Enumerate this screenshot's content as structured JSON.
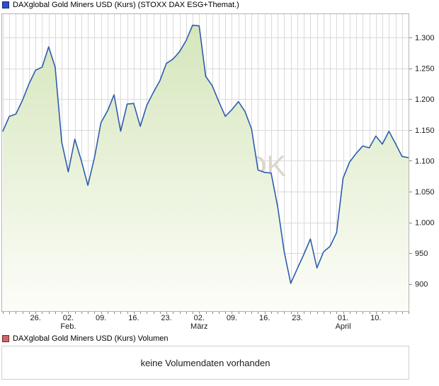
{
  "price_section": {
    "legend_label": "DAXglobal Gold Miners USD (Kurs) (STOXX DAX ESG+Themat.)",
    "marker_color": "#2b50c8",
    "marker_border": "#17267f"
  },
  "volume_section": {
    "legend_label": "DAXglobal Gold Miners USD (Kurs) Volumen",
    "marker_color": "#c96a6a",
    "marker_border": "#7c2222",
    "empty_message": "keine Volumendaten vorhanden"
  },
  "watermark_text": "DK",
  "chart_data": {
    "type": "area",
    "title": "DAXglobal Gold Miners USD (Kurs)",
    "x_unit": "trading days",
    "x": [
      "19.01",
      "20.01",
      "21.01",
      "22.01",
      "23.01",
      "26.01",
      "27.01",
      "28.01",
      "29.01",
      "30.01",
      "02.02",
      "03.02",
      "04.02",
      "05.02",
      "06.02",
      "09.02",
      "10.02",
      "11.02",
      "12.02",
      "13.02",
      "16.02",
      "17.02",
      "18.02",
      "19.02",
      "20.02",
      "23.02",
      "24.02",
      "25.02",
      "26.02",
      "27.02",
      "02.03",
      "03.03",
      "04.03",
      "05.03",
      "06.03",
      "09.03",
      "10.03",
      "11.03",
      "12.03",
      "13.03",
      "16.03",
      "17.03",
      "18.03",
      "19.03",
      "20.03",
      "23.03",
      "24.03",
      "25.03",
      "26.03",
      "27.03",
      "30.03",
      "31.03",
      "01.04",
      "02.04",
      "07.04",
      "08.04",
      "09.04",
      "10.04",
      "13.04",
      "14.04",
      "15.04",
      "16.04",
      "17.04"
    ],
    "values": [
      1148,
      1172,
      1176,
      1198,
      1225,
      1247,
      1252,
      1285,
      1252,
      1130,
      1082,
      1135,
      1100,
      1060,
      1105,
      1162,
      1181,
      1207,
      1148,
      1192,
      1193,
      1156,
      1190,
      1211,
      1230,
      1258,
      1265,
      1277,
      1295,
      1320,
      1319,
      1237,
      1222,
      1196,
      1172,
      1183,
      1196,
      1180,
      1152,
      1085,
      1081,
      1080,
      1025,
      952,
      901,
      925,
      948,
      973,
      926,
      952,
      961,
      983,
      1072,
      1098,
      1112,
      1124,
      1121,
      1140,
      1127,
      1148,
      1128,
      1107,
      1105
    ],
    "x_ticks": [
      {
        "i": 5,
        "l1": "26.",
        "l2": ""
      },
      {
        "i": 10,
        "l1": "02.",
        "l2": "Feb."
      },
      {
        "i": 15,
        "l1": "09.",
        "l2": ""
      },
      {
        "i": 20,
        "l1": "16.",
        "l2": ""
      },
      {
        "i": 25,
        "l1": "23.",
        "l2": ""
      },
      {
        "i": 30,
        "l1": "02.",
        "l2": "März"
      },
      {
        "i": 35,
        "l1": "09.",
        "l2": ""
      },
      {
        "i": 40,
        "l1": "16.",
        "l2": ""
      },
      {
        "i": 45,
        "l1": "23.",
        "l2": ""
      },
      {
        "i": 52,
        "l1": "01.",
        "l2": "April"
      },
      {
        "i": 57,
        "l1": "10.",
        "l2": ""
      }
    ],
    "y_ticks": [
      {
        "v": 900,
        "label": "900"
      },
      {
        "v": 950,
        "label": "950"
      },
      {
        "v": 1000,
        "label": "1.000"
      },
      {
        "v": 1050,
        "label": "1.050"
      },
      {
        "v": 1100,
        "label": "1.100"
      },
      {
        "v": 1150,
        "label": "1.150"
      },
      {
        "v": 1200,
        "label": "1.200"
      },
      {
        "v": 1250,
        "label": "1.250"
      },
      {
        "v": 1300,
        "label": "1.300"
      }
    ],
    "ylim": [
      856,
      1338
    ],
    "grid": true,
    "legend_position": "top-left",
    "line_color": "#2d5cae",
    "fill_top_color": "#d5e6bb",
    "fill_bottom_color": "#fdfdf9",
    "grid_color": "#dadada",
    "axis_color": "#b3b3b3",
    "tick_color": "#8a8a8a",
    "label_color": "#1a1a1a",
    "watermark_color": "#dcd6cc"
  }
}
